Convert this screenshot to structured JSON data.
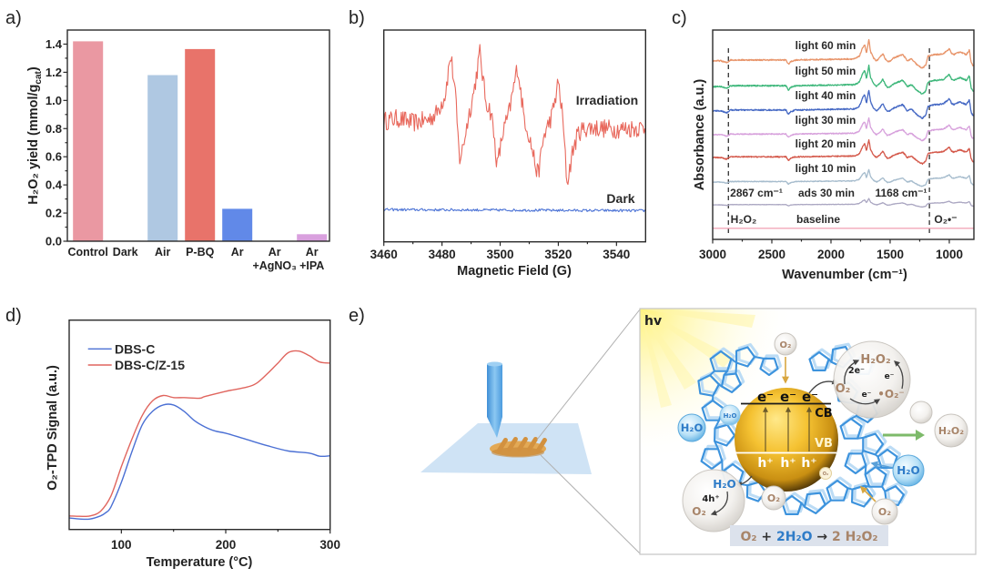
{
  "figure": {
    "panel_labels": [
      "a)",
      "b)",
      "c)",
      "d)",
      "e)"
    ]
  },
  "chart_data": [
    {
      "panel": "a",
      "type": "bar",
      "title": "",
      "categories": [
        "Control",
        "Dark",
        "Air",
        "P-BQ",
        "Ar",
        "Ar +AgNO₃",
        "Ar +IPA"
      ],
      "category_lines": [
        [
          "Control"
        ],
        [
          "Dark"
        ],
        [
          "Air"
        ],
        [
          "P-BQ"
        ],
        [
          "Ar"
        ],
        [
          "Ar",
          "+AgNO₃"
        ],
        [
          "Ar",
          "+IPA"
        ]
      ],
      "values": [
        1.42,
        0.005,
        1.18,
        1.365,
        0.23,
        0.0,
        0.05
      ],
      "colors": [
        "#ea98a2",
        "#cfcfcf",
        "#afc8e2",
        "#e8736a",
        "#6189e8",
        "#9fb3d6",
        "#d9a0de"
      ],
      "xlabel": "",
      "ylabel": "H₂O₂ yield (mmol/g_cat)",
      "ylabel_parts": [
        "H₂O₂ yield (mmol/g",
        "cat",
        ")"
      ],
      "ylim": [
        0,
        1.5
      ],
      "yticks": [
        0.0,
        0.2,
        0.4,
        0.6,
        0.8,
        1.0,
        1.2,
        1.4
      ],
      "ytick_labels": [
        "0.0",
        "0.2",
        "0.4",
        "0.6",
        "0.8",
        "1.0",
        "1.2",
        "1.4"
      ],
      "grid": false
    },
    {
      "panel": "b",
      "type": "line",
      "title": "",
      "xlabel": "Magnetic Field (G)",
      "ylabel": "",
      "xlim": [
        3460,
        3550
      ],
      "ylim": [
        0,
        10
      ],
      "xticks": [
        3460,
        3480,
        3500,
        3520,
        3540
      ],
      "xtick_labels": [
        "3460",
        "3480",
        "3500",
        "3520",
        "3540"
      ],
      "y_axis_ticks": "none",
      "grid": false,
      "series": [
        {
          "name": "Irradiation",
          "color": "#e8685c",
          "noise": 0.45,
          "x": [
            3460,
            3465,
            3470,
            3475,
            3478,
            3481,
            3483,
            3484.5,
            3486,
            3487,
            3489,
            3491,
            3493,
            3495,
            3497,
            3499,
            3501,
            3503,
            3506,
            3508,
            3510,
            3513,
            3515,
            3518,
            3520,
            3521.5,
            3523,
            3525,
            3527,
            3530,
            3540,
            3550
          ],
          "y": [
            5.7,
            5.83,
            5.62,
            5.75,
            6.05,
            6.9,
            8.84,
            7.12,
            3.9,
            4.33,
            5.83,
            7.12,
            8.93,
            6.69,
            6.05,
            3.6,
            5.19,
            6.05,
            8.32,
            6.05,
            4.98,
            3.12,
            4.98,
            6.05,
            7.55,
            5.83,
            2.74,
            4.33,
            5.19,
            5.4,
            5.32,
            5.4
          ]
        },
        {
          "name": "Dark",
          "color": "#4d74d6",
          "noise": 0.06,
          "x": [
            3460,
            3500,
            3550
          ],
          "y": [
            1.52,
            1.5,
            1.47
          ]
        }
      ]
    },
    {
      "panel": "c",
      "type": "line",
      "title": "",
      "xlabel": "Wavenumber (cm⁻¹)",
      "ylabel": "Absorbance (a.u.)",
      "xlim": [
        3000,
        792
      ],
      "ylim": [
        0,
        10
      ],
      "xticks": [
        3000,
        2500,
        2000,
        1500,
        1000
      ],
      "xtick_labels": [
        "3000",
        "2500",
        "2000",
        "1500",
        "1000"
      ],
      "grid": false,
      "reference_lines": [
        {
          "x": 2867,
          "label": "2867 cm⁻¹",
          "species": "H₂O₂"
        },
        {
          "x": 1168,
          "label": "1168 cm⁻¹",
          "species": "O₂•⁻"
        }
      ],
      "profile_x": [
        3000,
        2930,
        2880,
        2850,
        2820,
        2500,
        2380,
        2360,
        2340,
        2300,
        1800,
        1760,
        1730,
        1715,
        1700,
        1680,
        1665,
        1640,
        1615,
        1590,
        1562,
        1540,
        1523,
        1500,
        1470,
        1433,
        1394,
        1370,
        1356,
        1320,
        1290,
        1266,
        1228,
        1200,
        1180,
        1150,
        1125,
        1090,
        1048,
        1000,
        980,
        960,
        930,
        908,
        880,
        856,
        830,
        815,
        800
      ],
      "profile_y": [
        0,
        0,
        -0.09,
        0.04,
        0.04,
        0.04,
        0.04,
        -0.17,
        -0.04,
        0.04,
        0.09,
        0.22,
        0.65,
        0.78,
        0.35,
        1.0,
        0.43,
        0.13,
        0,
        0.13,
        0.35,
        0.09,
        -0.04,
        0,
        0.13,
        0.22,
        0.3,
        0.13,
        0,
        0.09,
        -0.09,
        -0.22,
        -0.35,
        -0.22,
        0.22,
        0.26,
        0.3,
        0.3,
        0.35,
        0.57,
        0.35,
        0.3,
        0.39,
        0.43,
        0.35,
        0.3,
        0.52,
        -0.09,
        -0.22
      ],
      "series": [
        {
          "name": "light 60 min",
          "color": "#e8956b",
          "offset": 8.53,
          "scale": 1.0
        },
        {
          "name": "light 50 min",
          "color": "#3db77a",
          "offset": 7.3,
          "scale": 1.0
        },
        {
          "name": "light 40 min",
          "color": "#4669c4",
          "offset": 6.14,
          "scale": 1.0
        },
        {
          "name": "light 30 min",
          "color": "#d7a1dc",
          "offset": 5.0,
          "scale": 0.8
        },
        {
          "name": "light 20 min",
          "color": "#d4584a",
          "offset": 3.91,
          "scale": 0.85
        },
        {
          "name": "light 10 min",
          "color": "#a6bccd",
          "offset": 2.74,
          "scale": 0.6
        },
        {
          "name": "ads 30 min",
          "color": "#aba7c2",
          "offset": 1.65,
          "scale": 0.3
        },
        {
          "name": "baseline",
          "color": "#f2a7b8",
          "offset": 0.53,
          "scale": 0.0
        }
      ]
    },
    {
      "panel": "d",
      "type": "line",
      "title": "",
      "xlabel": "Temperature (°C)",
      "ylabel": "O₂-TPD Signal (a.u.)",
      "xlim": [
        50,
        300
      ],
      "ylim": [
        0,
        1
      ],
      "xticks": [
        100,
        200,
        300
      ],
      "xtick_labels": [
        "100",
        "200",
        "300"
      ],
      "legend_position": "top-left",
      "grid": false,
      "series": [
        {
          "name": "DBS-C",
          "color": "#4b70d4",
          "x": [
            50,
            60,
            70,
            80,
            85,
            90,
            100,
            110,
            120,
            130,
            140,
            150,
            160,
            170,
            180,
            190,
            200,
            220,
            240,
            260,
            280,
            290,
            300
          ],
          "y": [
            0.055,
            0.05,
            0.05,
            0.065,
            0.08,
            0.108,
            0.225,
            0.37,
            0.5,
            0.565,
            0.595,
            0.595,
            0.565,
            0.52,
            0.49,
            0.47,
            0.46,
            0.43,
            0.4,
            0.375,
            0.365,
            0.35,
            0.352
          ]
        },
        {
          "name": "DBS-C/Z-15",
          "color": "#e0655e",
          "x": [
            50,
            60,
            70,
            80,
            90,
            100,
            110,
            120,
            130,
            140,
            150,
            160,
            175,
            180,
            200,
            220,
            230,
            240,
            250,
            260,
            270,
            280,
            290,
            300
          ],
          "y": [
            0.065,
            0.063,
            0.065,
            0.087,
            0.16,
            0.3,
            0.43,
            0.545,
            0.615,
            0.64,
            0.63,
            0.63,
            0.627,
            0.635,
            0.66,
            0.68,
            0.7,
            0.745,
            0.795,
            0.845,
            0.852,
            0.83,
            0.8,
            0.795
          ]
        }
      ]
    }
  ],
  "schematic": {
    "light_label": "hv",
    "semiconductor": {
      "electrons": [
        "e⁻",
        "e⁻",
        "e⁻"
      ],
      "holes": [
        "h⁺",
        "h⁺",
        "h⁺"
      ],
      "cb_label": "CB",
      "vb_label": "VB"
    },
    "o2_bubbles": [
      "O₂",
      "O₂",
      "O₂",
      "O₂"
    ],
    "h2o_bubbles": [
      "H₂O",
      "H₂O",
      "H₂O"
    ],
    "reduction_bubble": {
      "product": "H₂O₂",
      "two_electron": "2e⁻",
      "reactant": "O₂",
      "electron_a": "e⁻",
      "electron_b": "e⁻",
      "intermediate": "•O₂⁻"
    },
    "oxidation_bubble": {
      "reactant": "H₂O",
      "holes": "4h⁺",
      "product": "O₂"
    },
    "product_bubble": "H₂O₂",
    "equation": {
      "reactant_o2": "O₂",
      "plus": " + ",
      "reactant_h2o": "2H₂O",
      "arrow": " → ",
      "product": "2 H₂O₂"
    },
    "colors": {
      "o2_text": "#a8856a",
      "h2o_text": "#2f7cc8",
      "operator_text": "#333333",
      "product_arrow": "#7dba6a"
    }
  }
}
